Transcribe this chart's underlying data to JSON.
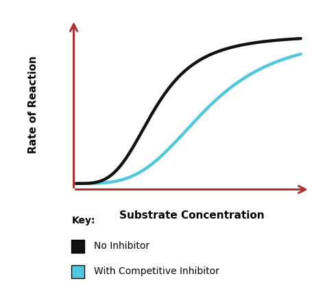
{
  "background_color": "#ffffff",
  "axis_color": "#b03030",
  "ylabel": "Rate of Reaction",
  "xlabel": "Substrate Concentration",
  "ylabel_fontsize": 11,
  "xlabel_fontsize": 11,
  "ylabel_fontweight": "bold",
  "xlabel_fontweight": "bold",
  "no_inhibitor_color": "#111111",
  "competitive_color": "#4ec8dc",
  "no_inhibitor_linewidth": 3.2,
  "competitive_linewidth": 3.2,
  "legend_title": "Key:",
  "legend_label_1": "No Inhibitor",
  "legend_label_2": "With Competitive Inhibitor",
  "legend_title_fontsize": 10,
  "legend_label_fontsize": 10
}
